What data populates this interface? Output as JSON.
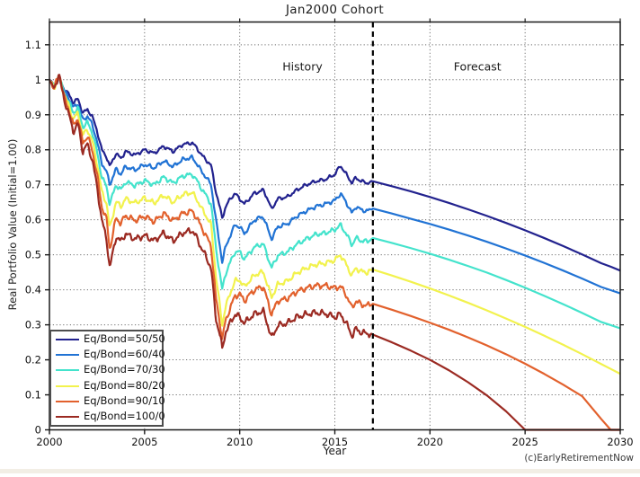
{
  "chart_data": {
    "type": "line",
    "title": "Jan2000 Cohort",
    "xlabel": "Year",
    "ylabel": "Real Portfolio Value (Initial=1.00)",
    "watermark": "(c)EarlyRetirementNow",
    "xlim": [
      2000,
      2030
    ],
    "ylim": [
      0,
      1.165
    ],
    "xticks": [
      2000,
      2005,
      2010,
      2015,
      2020,
      2025,
      2030
    ],
    "yticks": [
      0,
      0.1,
      0.2,
      0.3,
      0.4,
      0.5,
      0.6,
      0.7,
      0.8,
      0.9,
      1,
      1.1
    ],
    "grid": "dotted",
    "legend_position": "southwest",
    "annotations": [
      {
        "text": "History",
        "x": 2013.3,
        "y": 1.037
      },
      {
        "text": "Forecast",
        "x": 2022.5,
        "y": 1.037
      }
    ],
    "divider": {
      "x": 2017,
      "style": "dashed",
      "color": "#000000"
    },
    "x_history": [
      2000,
      2000.25,
      2000.5,
      2000.75,
      2001,
      2001.25,
      2001.5,
      2001.75,
      2002,
      2002.25,
      2002.5,
      2002.75,
      2003,
      2003.17,
      2003.5,
      2003.75,
      2004,
      2004.5,
      2005,
      2005.5,
      2006,
      2006.5,
      2007,
      2007.5,
      2007.75,
      2008,
      2008.25,
      2008.5,
      2008.75,
      2009,
      2009.08,
      2009.25,
      2009.5,
      2009.75,
      2010,
      2010.25,
      2010.5,
      2010.75,
      2011,
      2011.25,
      2011.5,
      2011.67,
      2012,
      2012.5,
      2013,
      2013.5,
      2014,
      2014.5,
      2015,
      2015.3,
      2015.6,
      2015.9,
      2016.1,
      2016.4,
      2016.7,
      2017
    ],
    "x_forecast": [
      2017,
      2018,
      2019,
      2020,
      2021,
      2022,
      2023,
      2024,
      2025,
      2026,
      2027,
      2028,
      2029,
      2029.5,
      2030
    ],
    "series": [
      {
        "name": "Eq/Bond=50/50",
        "color": "#22228e",
        "wiggle": 0.006,
        "history": [
          1.0,
          0.985,
          1.005,
          0.975,
          0.96,
          0.935,
          0.945,
          0.905,
          0.915,
          0.895,
          0.855,
          0.8,
          0.78,
          0.752,
          0.79,
          0.775,
          0.795,
          0.785,
          0.8,
          0.79,
          0.81,
          0.795,
          0.815,
          0.82,
          0.805,
          0.785,
          0.77,
          0.755,
          0.68,
          0.625,
          0.605,
          0.635,
          0.66,
          0.675,
          0.66,
          0.645,
          0.66,
          0.675,
          0.68,
          0.685,
          0.655,
          0.63,
          0.66,
          0.665,
          0.685,
          0.7,
          0.71,
          0.715,
          0.73,
          0.755,
          0.73,
          0.705,
          0.72,
          0.71,
          0.705,
          0.71
        ],
        "forecast": [
          0.71,
          0.696,
          0.681,
          0.665,
          0.648,
          0.63,
          0.611,
          0.591,
          0.57,
          0.548,
          0.525,
          0.501,
          0.476,
          0.466,
          0.455
        ]
      },
      {
        "name": "Eq/Bond=60/40",
        "color": "#2173d4",
        "wiggle": 0.007,
        "history": [
          1.0,
          0.982,
          1.008,
          0.97,
          0.95,
          0.92,
          0.932,
          0.885,
          0.896,
          0.872,
          0.825,
          0.762,
          0.738,
          0.7,
          0.745,
          0.73,
          0.752,
          0.742,
          0.758,
          0.748,
          0.768,
          0.752,
          0.772,
          0.778,
          0.76,
          0.738,
          0.72,
          0.7,
          0.6,
          0.51,
          0.48,
          0.52,
          0.555,
          0.585,
          0.58,
          0.56,
          0.58,
          0.598,
          0.605,
          0.608,
          0.57,
          0.545,
          0.58,
          0.588,
          0.61,
          0.625,
          0.638,
          0.645,
          0.655,
          0.675,
          0.65,
          0.618,
          0.638,
          0.628,
          0.625,
          0.632
        ],
        "forecast": [
          0.632,
          0.618,
          0.603,
          0.588,
          0.572,
          0.555,
          0.537,
          0.518,
          0.498,
          0.477,
          0.455,
          0.432,
          0.408,
          0.399,
          0.39
        ]
      },
      {
        "name": "Eq/Bond=70/30",
        "color": "#44e3cc",
        "wiggle": 0.008,
        "history": [
          1.0,
          0.98,
          1.01,
          0.965,
          0.94,
          0.905,
          0.92,
          0.865,
          0.878,
          0.85,
          0.795,
          0.722,
          0.695,
          0.645,
          0.7,
          0.685,
          0.708,
          0.698,
          0.712,
          0.7,
          0.722,
          0.705,
          0.725,
          0.73,
          0.712,
          0.688,
          0.668,
          0.645,
          0.52,
          0.43,
          0.4,
          0.445,
          0.478,
          0.508,
          0.508,
          0.488,
          0.505,
          0.52,
          0.528,
          0.53,
          0.49,
          0.462,
          0.498,
          0.508,
          0.53,
          0.545,
          0.558,
          0.562,
          0.572,
          0.585,
          0.56,
          0.528,
          0.548,
          0.54,
          0.538,
          0.548
        ],
        "forecast": [
          0.548,
          0.534,
          0.519,
          0.503,
          0.486,
          0.468,
          0.449,
          0.428,
          0.406,
          0.383,
          0.359,
          0.334,
          0.308,
          0.299,
          0.29
        ]
      },
      {
        "name": "Eq/Bond=80/20",
        "color": "#f2f24e",
        "wiggle": 0.009,
        "history": [
          1.0,
          0.978,
          1.012,
          0.96,
          0.928,
          0.888,
          0.905,
          0.842,
          0.858,
          0.825,
          0.762,
          0.68,
          0.648,
          0.575,
          0.652,
          0.638,
          0.66,
          0.648,
          0.662,
          0.648,
          0.67,
          0.65,
          0.672,
          0.678,
          0.658,
          0.632,
          0.61,
          0.585,
          0.44,
          0.335,
          0.3,
          0.35,
          0.39,
          0.425,
          0.428,
          0.408,
          0.425,
          0.44,
          0.448,
          0.45,
          0.408,
          0.378,
          0.415,
          0.425,
          0.448,
          0.462,
          0.472,
          0.476,
          0.485,
          0.5,
          0.472,
          0.44,
          0.462,
          0.452,
          0.45,
          0.458
        ],
        "forecast": [
          0.458,
          0.441,
          0.423,
          0.404,
          0.384,
          0.363,
          0.341,
          0.318,
          0.294,
          0.269,
          0.243,
          0.216,
          0.188,
          0.174,
          0.16
        ]
      },
      {
        "name": "Eq/Bond=90/10",
        "color": "#e2612d",
        "wiggle": 0.01,
        "history": [
          1.0,
          0.975,
          1.015,
          0.955,
          0.918,
          0.87,
          0.89,
          0.82,
          0.838,
          0.8,
          0.73,
          0.638,
          0.602,
          0.515,
          0.605,
          0.59,
          0.612,
          0.598,
          0.61,
          0.595,
          0.618,
          0.598,
          0.618,
          0.625,
          0.605,
          0.578,
          0.552,
          0.525,
          0.375,
          0.292,
          0.258,
          0.31,
          0.348,
          0.382,
          0.388,
          0.368,
          0.385,
          0.398,
          0.405,
          0.408,
          0.362,
          0.33,
          0.368,
          0.375,
          0.395,
          0.405,
          0.412,
          0.412,
          0.405,
          0.41,
          0.385,
          0.348,
          0.368,
          0.358,
          0.355,
          0.36
        ],
        "forecast": [
          0.36,
          0.343,
          0.325,
          0.306,
          0.286,
          0.264,
          0.241,
          0.216,
          0.189,
          0.16,
          0.129,
          0.096,
          0.031,
          0.0,
          0.0
        ]
      },
      {
        "name": "Eq/Bond=100/0",
        "color": "#9b2a22",
        "wiggle": 0.011,
        "history": [
          1.0,
          0.972,
          1.018,
          0.948,
          0.905,
          0.852,
          0.875,
          0.795,
          0.815,
          0.772,
          0.695,
          0.6,
          0.545,
          0.462,
          0.552,
          0.538,
          0.56,
          0.545,
          0.555,
          0.54,
          0.562,
          0.54,
          0.562,
          0.57,
          0.548,
          0.518,
          0.492,
          0.462,
          0.318,
          0.262,
          0.228,
          0.278,
          0.305,
          0.33,
          0.322,
          0.305,
          0.318,
          0.33,
          0.335,
          0.338,
          0.295,
          0.262,
          0.298,
          0.305,
          0.322,
          0.33,
          0.335,
          0.332,
          0.322,
          0.33,
          0.305,
          0.268,
          0.288,
          0.278,
          0.275,
          0.272
        ],
        "forecast": [
          0.272,
          0.25,
          0.226,
          0.2,
          0.17,
          0.136,
          0.098,
          0.053,
          0.0,
          0.0,
          0.0,
          0.0,
          0.0,
          0.0,
          0.0
        ]
      }
    ]
  },
  "styles": {
    "grid_color": "#6e6e6e",
    "axis_color": "#1a1a1a",
    "bottom_strip_color": "#f2eee5"
  }
}
